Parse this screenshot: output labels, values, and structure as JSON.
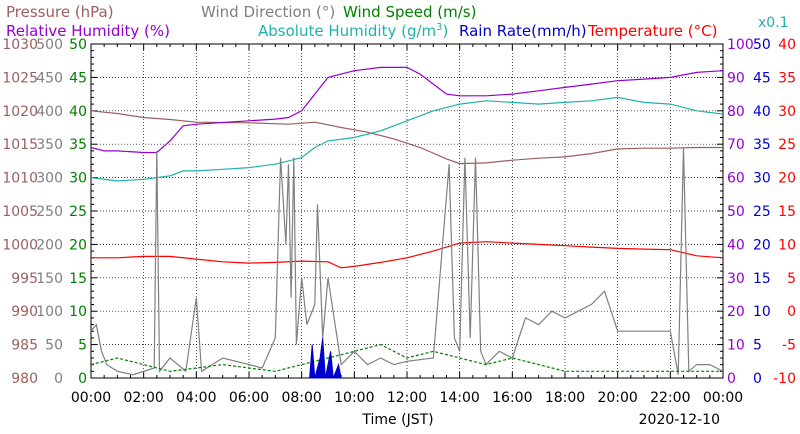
{
  "chart_data": {
    "type": "line",
    "xlabel": "Time (JST)",
    "date": "2020-12-10",
    "x_ticks": [
      "00:00",
      "02:00",
      "04:00",
      "06:00",
      "08:00",
      "10:00",
      "12:00",
      "14:00",
      "16:00",
      "18:00",
      "20:00",
      "22:00",
      "00:00"
    ],
    "legend": {
      "row1": [
        {
          "label": "Pressure (hPa)",
          "color": "#9c5e5e"
        },
        {
          "label": "Wind Direction (°)",
          "color": "#808080"
        },
        {
          "label": "Wind Speed (m/s)",
          "color": "#008000"
        }
      ],
      "row2": [
        {
          "label": "Relative Humidity (%)",
          "color": "#9400d3"
        },
        {
          "label": "Absolute Humidity (g/m",
          "sup": "3",
          "close": ")",
          "color": "#20b2aa"
        },
        {
          "label": "Rain Rate(mm/h)",
          "color": "#0000cd"
        },
        {
          "label": "Temperature (°C)",
          "color": "#ff0000"
        }
      ],
      "scale_note": "x0.1"
    },
    "axes": {
      "pressure": {
        "ticks": [
          "1030",
          "1025",
          "1020",
          "1015",
          "1010",
          "1005",
          "1000",
          "995",
          "990",
          "985",
          "980"
        ],
        "min": 980,
        "max": 1030,
        "color": "#9c5e5e"
      },
      "wind_direction": {
        "ticks": [
          "500",
          "450",
          "400",
          "350",
          "300",
          "250",
          "200",
          "150",
          "100",
          "50",
          "0"
        ],
        "min": 0,
        "max": 500,
        "color": "#808080"
      },
      "wind_speed": {
        "ticks": [
          "50",
          "45",
          "40",
          "35",
          "30",
          "25",
          "20",
          "15",
          "10",
          "5",
          "0"
        ],
        "min": 0,
        "max": 50,
        "color": "#008000"
      },
      "relative_humidity": {
        "ticks": [
          "100",
          "90",
          "80",
          "70",
          "60",
          "50",
          "40",
          "30",
          "20",
          "10",
          "0"
        ],
        "min": 0,
        "max": 100,
        "color": "#9400d3"
      },
      "rain_rate": {
        "ticks": [
          "50",
          "45",
          "40",
          "35",
          "30",
          "25",
          "20",
          "15",
          "10",
          "5",
          "0"
        ],
        "min": 0,
        "max": 50,
        "color": "#0000cd"
      },
      "temperature": {
        "ticks": [
          "40",
          "35",
          "30",
          "25",
          "20",
          "15",
          "10",
          "5",
          "0",
          "-5",
          "-10"
        ],
        "min": -10,
        "max": 40,
        "color": "#ff0000"
      }
    },
    "series": [
      {
        "name": "Pressure (hPa)",
        "axis": "pressure",
        "color": "#9c5e5e",
        "points": [
          [
            0,
            1020
          ],
          [
            1,
            1019.6
          ],
          [
            2,
            1019
          ],
          [
            3,
            1018.7
          ],
          [
            4,
            1018.3
          ],
          [
            6,
            1018.2
          ],
          [
            7.5,
            1018
          ],
          [
            8.5,
            1018.3
          ],
          [
            9.5,
            1017.5
          ],
          [
            10.5,
            1016.8
          ],
          [
            11.5,
            1015.8
          ],
          [
            12.5,
            1014.5
          ],
          [
            13.5,
            1012.8
          ],
          [
            14,
            1012.1
          ],
          [
            15,
            1012.2
          ],
          [
            16,
            1012.6
          ],
          [
            17,
            1012.9
          ],
          [
            18,
            1013.1
          ],
          [
            19,
            1013.6
          ],
          [
            20,
            1014.3
          ],
          [
            21,
            1014.4
          ],
          [
            22,
            1014.4
          ],
          [
            23,
            1014.5
          ],
          [
            24,
            1014.5
          ]
        ]
      },
      {
        "name": "Relative Humidity (%)",
        "axis": "relative_humidity",
        "color": "#9400d3",
        "points": [
          [
            0,
            69
          ],
          [
            0.5,
            68
          ],
          [
            1,
            68
          ],
          [
            2,
            67.5
          ],
          [
            2.5,
            67.5
          ],
          [
            3,
            71
          ],
          [
            3.5,
            75.5
          ],
          [
            4,
            76
          ],
          [
            5,
            76.5
          ],
          [
            6,
            77
          ],
          [
            7,
            77.5
          ],
          [
            7.5,
            78
          ],
          [
            8,
            80
          ],
          [
            8.5,
            85
          ],
          [
            9,
            90
          ],
          [
            10,
            92
          ],
          [
            11,
            93
          ],
          [
            12,
            93
          ],
          [
            12.5,
            91
          ],
          [
            13,
            88
          ],
          [
            13.5,
            85
          ],
          [
            14,
            84.5
          ],
          [
            15,
            84.5
          ],
          [
            16,
            85
          ],
          [
            17,
            86
          ],
          [
            18,
            87
          ],
          [
            19,
            88
          ],
          [
            20,
            89
          ],
          [
            21,
            89.5
          ],
          [
            22,
            90
          ],
          [
            23,
            91.5
          ],
          [
            24,
            92
          ]
        ]
      },
      {
        "name": "Absolute Humidity (g/m3)",
        "axis": "relative_humidity",
        "color": "#20b2aa",
        "points": [
          [
            0,
            60
          ],
          [
            1,
            59
          ],
          [
            2,
            59.5
          ],
          [
            3,
            60.5
          ],
          [
            3.5,
            62
          ],
          [
            4,
            62
          ],
          [
            5,
            62.5
          ],
          [
            6,
            63
          ],
          [
            7,
            64
          ],
          [
            7.5,
            65
          ],
          [
            8,
            66
          ],
          [
            8.5,
            69
          ],
          [
            9,
            71
          ],
          [
            10,
            72
          ],
          [
            11,
            74
          ],
          [
            12,
            77
          ],
          [
            13,
            80
          ],
          [
            14,
            82
          ],
          [
            15,
            83
          ],
          [
            16,
            82.5
          ],
          [
            17,
            82
          ],
          [
            18,
            82.5
          ],
          [
            19,
            83
          ],
          [
            20,
            84
          ],
          [
            21,
            82.5
          ],
          [
            22,
            82
          ],
          [
            23,
            80
          ],
          [
            24,
            79
          ]
        ]
      },
      {
        "name": "Temperature (°C)",
        "axis": "temperature",
        "color": "#ff0000",
        "points": [
          [
            0,
            8
          ],
          [
            1,
            8
          ],
          [
            2,
            8.2
          ],
          [
            3,
            8.2
          ],
          [
            4,
            7.8
          ],
          [
            5,
            7.4
          ],
          [
            6,
            7.2
          ],
          [
            7,
            7.3
          ],
          [
            8,
            7.5
          ],
          [
            9,
            7.4
          ],
          [
            9.5,
            6.5
          ],
          [
            10,
            6.7
          ],
          [
            11,
            7.3
          ],
          [
            12,
            8
          ],
          [
            13,
            9
          ],
          [
            14,
            10.2
          ],
          [
            15,
            10.4
          ],
          [
            16,
            10.2
          ],
          [
            17,
            10
          ],
          [
            18,
            9.8
          ],
          [
            19,
            9.6
          ],
          [
            20,
            9.4
          ],
          [
            21,
            9.3
          ],
          [
            22,
            9.2
          ],
          [
            23,
            8.3
          ],
          [
            24,
            8
          ]
        ]
      },
      {
        "name": "Wind Direction (°)",
        "axis": "wind_direction",
        "color": "#808080",
        "points": [
          [
            0,
            70
          ],
          [
            0.2,
            80
          ],
          [
            0.4,
            40
          ],
          [
            0.6,
            20
          ],
          [
            1,
            10
          ],
          [
            1.6,
            5
          ],
          [
            2.4,
            15
          ],
          [
            2.5,
            340
          ],
          [
            2.6,
            10
          ],
          [
            3,
            30
          ],
          [
            3.6,
            10
          ],
          [
            4,
            120
          ],
          [
            4.2,
            10
          ],
          [
            5,
            30
          ],
          [
            6,
            20
          ],
          [
            6.5,
            15
          ],
          [
            7,
            60
          ],
          [
            7.2,
            330
          ],
          [
            7.4,
            200
          ],
          [
            7.5,
            320
          ],
          [
            7.6,
            120
          ],
          [
            7.7,
            330
          ],
          [
            7.8,
            50
          ],
          [
            8,
            150
          ],
          [
            8.2,
            80
          ],
          [
            8.5,
            110
          ],
          [
            8.6,
            260
          ],
          [
            8.8,
            60
          ],
          [
            9,
            150
          ],
          [
            9.5,
            20
          ],
          [
            10,
            40
          ],
          [
            10.5,
            20
          ],
          [
            11,
            30
          ],
          [
            11.5,
            20
          ],
          [
            12,
            25
          ],
          [
            13,
            30
          ],
          [
            13.6,
            320
          ],
          [
            13.8,
            60
          ],
          [
            14,
            40
          ],
          [
            14.2,
            330
          ],
          [
            14.4,
            60
          ],
          [
            14.6,
            330
          ],
          [
            14.8,
            40
          ],
          [
            15,
            20
          ],
          [
            15.5,
            40
          ],
          [
            16,
            30
          ],
          [
            16.5,
            90
          ],
          [
            17,
            80
          ],
          [
            17.5,
            100
          ],
          [
            18,
            90
          ],
          [
            18.5,
            100
          ],
          [
            19,
            110
          ],
          [
            19.5,
            130
          ],
          [
            20,
            70
          ],
          [
            20.5,
            70
          ],
          [
            21,
            70
          ],
          [
            21.5,
            70
          ],
          [
            22,
            70
          ],
          [
            22.3,
            5
          ],
          [
            22.5,
            345
          ],
          [
            22.7,
            10
          ],
          [
            23,
            20
          ],
          [
            23.5,
            20
          ],
          [
            24,
            10
          ]
        ]
      },
      {
        "name": "Wind Speed (m/s)",
        "axis": "wind_speed",
        "color": "#008000",
        "points": [
          [
            0,
            2
          ],
          [
            1,
            3
          ],
          [
            2,
            2
          ],
          [
            3,
            1
          ],
          [
            4,
            1.5
          ],
          [
            5,
            2
          ],
          [
            6,
            1.5
          ],
          [
            7,
            1
          ],
          [
            8,
            2
          ],
          [
            9,
            3
          ],
          [
            10,
            4
          ],
          [
            11,
            5
          ],
          [
            12,
            3
          ],
          [
            13,
            4
          ],
          [
            14,
            3
          ],
          [
            15,
            2
          ],
          [
            16,
            3
          ],
          [
            17,
            2
          ],
          [
            18,
            1
          ],
          [
            19,
            1
          ],
          [
            20,
            1
          ],
          [
            21,
            1
          ],
          [
            22,
            1
          ],
          [
            23,
            1
          ],
          [
            24,
            1
          ]
        ]
      },
      {
        "name": "Rain Rate(mm/h)",
        "axis": "rain_rate",
        "color": "#0000cd",
        "points": [
          [
            8.3,
            0
          ],
          [
            8.4,
            5
          ],
          [
            8.5,
            0
          ],
          [
            8.7,
            3
          ],
          [
            8.8,
            6
          ],
          [
            8.9,
            0
          ],
          [
            9.1,
            4
          ],
          [
            9.2,
            0
          ],
          [
            9.4,
            2
          ],
          [
            9.5,
            0
          ]
        ]
      }
    ],
    "ylim_note": "six overlaid y-axes; left: pressure, wind direction, wind speed; right: relative humidity, rain rate, temperature",
    "grid": true
  }
}
